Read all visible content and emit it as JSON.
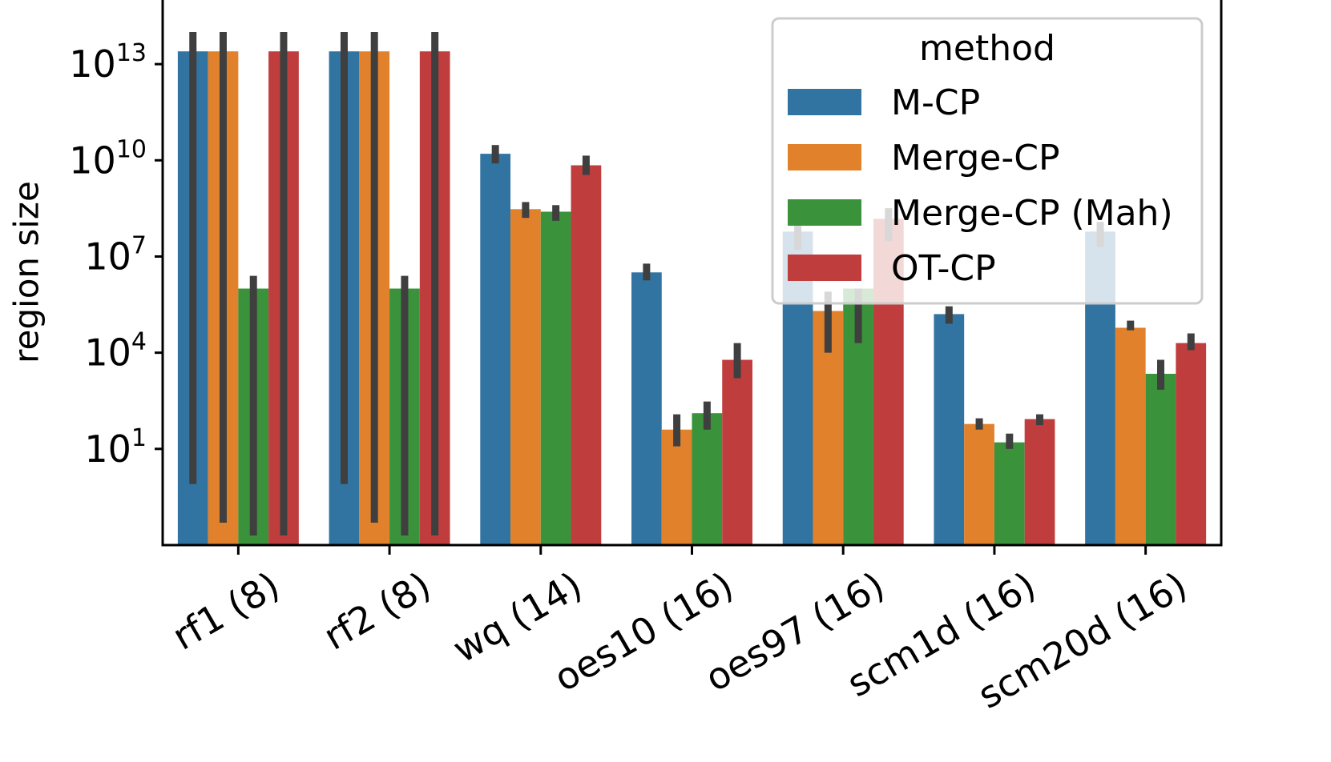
{
  "chart_data": {
    "type": "bar",
    "title": "",
    "xlabel": "",
    "ylabel": "region size",
    "yscale": "log",
    "ylim": [
      0.01,
      1000000000000000.0
    ],
    "yticks": [
      {
        "value": 10,
        "base": "10",
        "exp": "1"
      },
      {
        "value": 10000,
        "base": "10",
        "exp": "4"
      },
      {
        "value": 10000000,
        "base": "10",
        "exp": "7"
      },
      {
        "value": 10000000000,
        "base": "10",
        "exp": "10"
      },
      {
        "value": 10000000000000,
        "base": "10",
        "exp": "13"
      }
    ],
    "categories": [
      "rf1 (8)",
      "rf2 (8)",
      "wq (14)",
      "oes10 (16)",
      "oes97 (16)",
      "scm1d (16)",
      "scm20d (16)"
    ],
    "series": [
      {
        "name": "M-CP",
        "color": "#3274a1",
        "values": [
          25000000000000.0,
          25000000000000.0,
          16000000000.0,
          3200000.0,
          60000000.0,
          160000.0,
          60000000.0
        ],
        "err_low": [
          0.8,
          0.8,
          8000000000.0,
          1800000.0,
          16000000.0,
          80000.0,
          20000000.0
        ],
        "err_high": [
          100000000000000.0,
          100000000000000.0,
          30000000000.0,
          6000000.0,
          160000000.0,
          280000.0,
          120000000.0
        ]
      },
      {
        "name": "Merge-CP",
        "color": "#e1812c",
        "values": [
          25000000000000.0,
          25000000000000.0,
          300000000.0,
          40,
          200000.0,
          60,
          60000.0
        ],
        "err_low": [
          0.05,
          0.05,
          160000000.0,
          12,
          10000.0,
          40,
          50000.0
        ],
        "err_high": [
          100000000000000.0,
          100000000000000.0,
          500000000.0,
          120,
          800000.0,
          90,
          100000.0
        ]
      },
      {
        "name": "Merge-CP (Mah)",
        "color": "#3a923a",
        "values": [
          1000000.0,
          1000000.0,
          250000000.0,
          130,
          1000000.0,
          16,
          2200.0
        ],
        "err_low": [
          0.02,
          0.02,
          130000000.0,
          40,
          20000.0,
          10,
          700
        ],
        "err_high": [
          2500000.0,
          2500000.0,
          400000000.0,
          300,
          1000000.0,
          30,
          6000.0
        ]
      },
      {
        "name": "OT-CP",
        "color": "#c03d3e",
        "values": [
          25000000000000.0,
          25000000000000.0,
          7000000000.0,
          6000.0,
          150000000.0,
          85,
          20000.0
        ],
        "err_low": [
          0.02,
          0.02,
          3500000000.0,
          1600.0,
          30000000.0,
          55,
          12000.0
        ],
        "err_high": [
          100000000000000.0,
          100000000000000.0,
          14000000000.0,
          20000.0,
          320000000.0,
          120,
          40000.0
        ]
      }
    ],
    "legend": {
      "title": "method",
      "position": "top-right",
      "entries": [
        "M-CP",
        "Merge-CP",
        "Merge-CP (Mah)",
        "OT-CP"
      ]
    }
  }
}
